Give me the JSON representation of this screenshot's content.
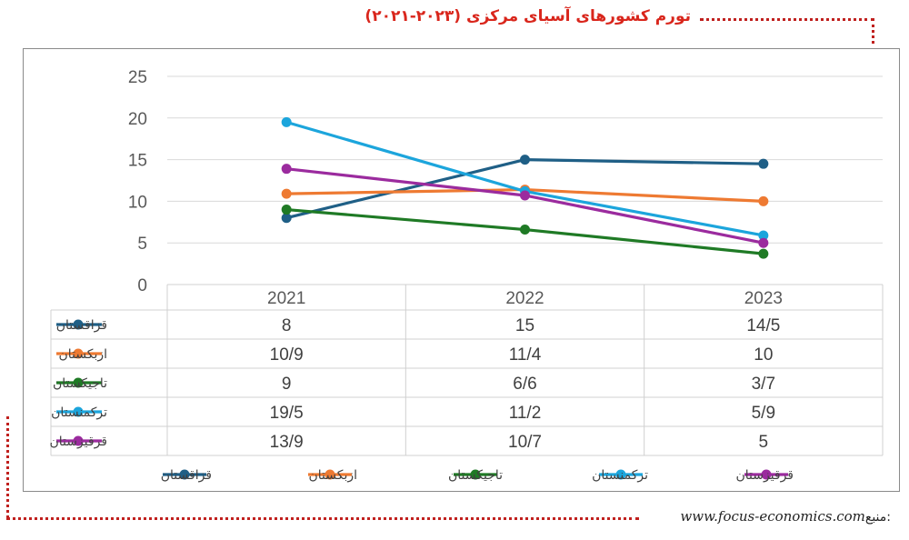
{
  "title": "تورم کشورهای آسیای مرکزی (۲۰۲۳-۲۰۲۱)",
  "source_label": "منبع:",
  "source_url": "www.focus-economics.com",
  "colors": {
    "accent": "#d9261c"
  },
  "chart_data": {
    "type": "line",
    "categories": [
      "2021",
      "2022",
      "2023"
    ],
    "yticks": [
      "0",
      "5",
      "10",
      "15",
      "20",
      "25"
    ],
    "ylim": [
      0,
      25
    ],
    "grid": true,
    "legend_position": "bottom",
    "series": [
      {
        "name": "قزاقستان",
        "color": "#1f5f86",
        "values": [
          8,
          15,
          14.5
        ],
        "labels": [
          "8",
          "15",
          "14/5"
        ]
      },
      {
        "name": "ازبکستان",
        "color": "#ee7a32",
        "values": [
          10.9,
          11.4,
          10
        ],
        "labels": [
          "10/9",
          "11/4",
          "10"
        ]
      },
      {
        "name": "تاجیکستان",
        "color": "#1f7a25",
        "values": [
          9,
          6.6,
          3.7
        ],
        "labels": [
          "9",
          "6/6",
          "3/7"
        ]
      },
      {
        "name": "ترکمنستان",
        "color": "#1ca5dc",
        "values": [
          19.5,
          11.2,
          5.9
        ],
        "labels": [
          "19/5",
          "11/2",
          "5/9"
        ]
      },
      {
        "name": "قرقیزستان",
        "color": "#9b2b9e",
        "values": [
          13.9,
          10.7,
          5
        ],
        "labels": [
          "13/9",
          "10/7",
          "5"
        ]
      }
    ]
  }
}
